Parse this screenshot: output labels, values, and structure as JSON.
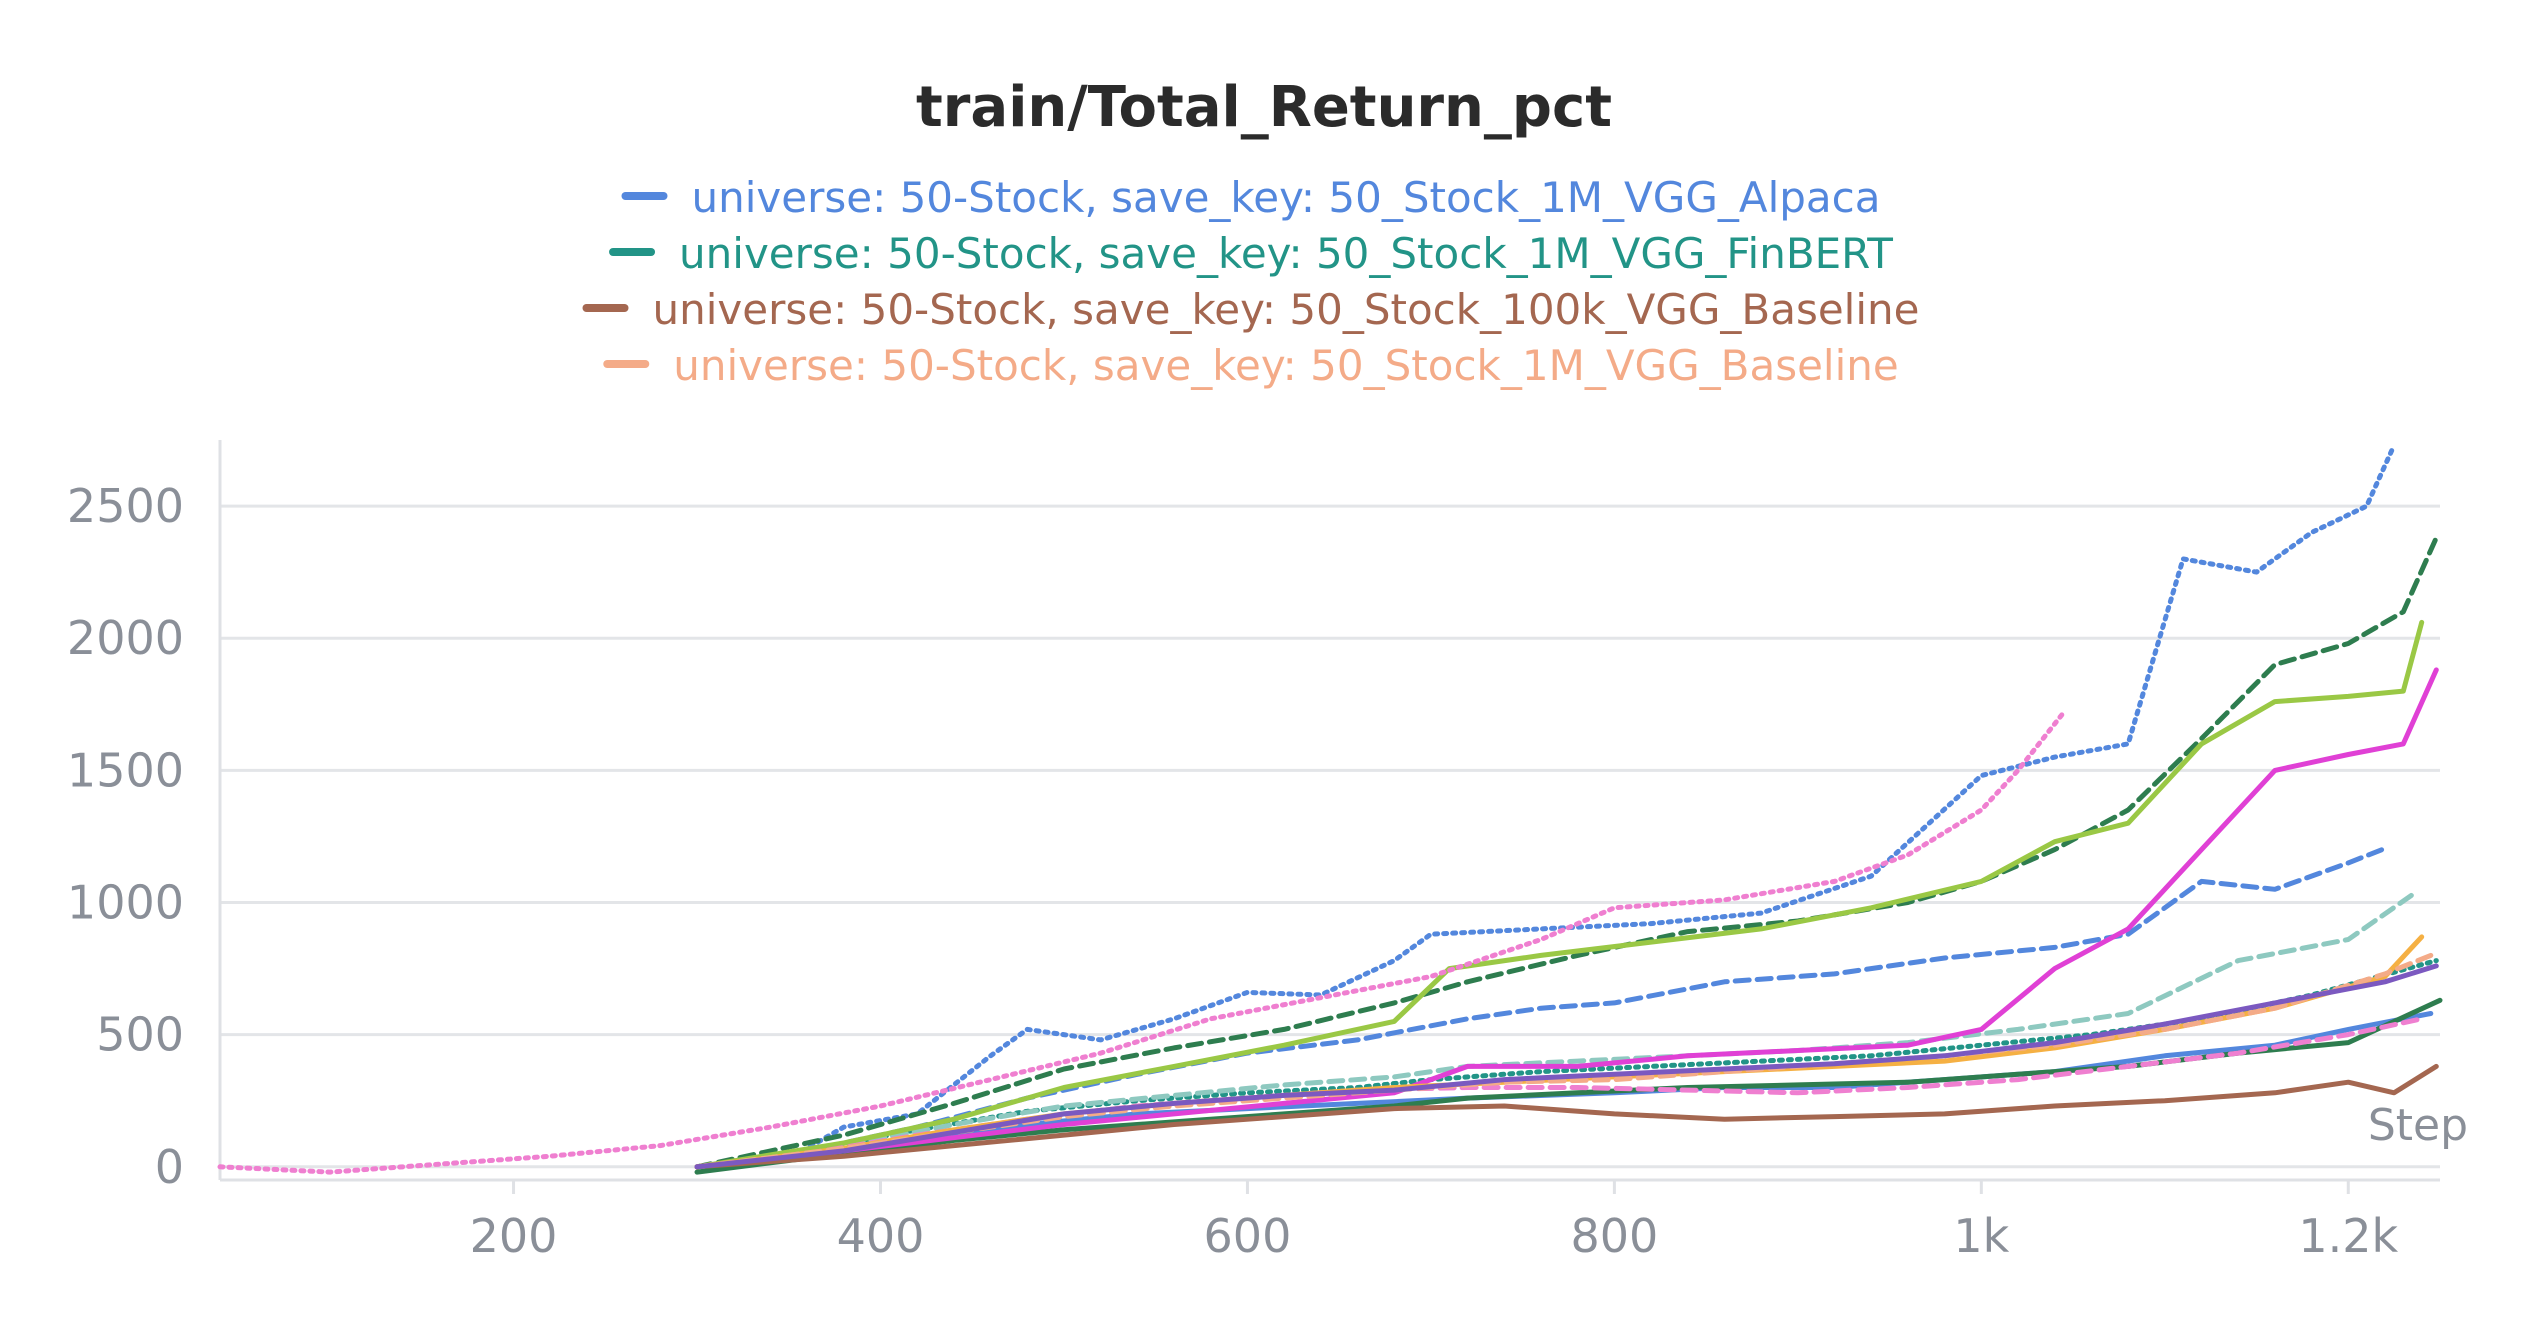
{
  "chart_data": {
    "type": "line",
    "title": "train/Total_Return_pct",
    "xlabel": "Step",
    "ylabel": "",
    "xlim": [
      40,
      1250
    ],
    "ylim": [
      -50,
      2750
    ],
    "x_ticks": [
      {
        "value": 200,
        "label": "200"
      },
      {
        "value": 400,
        "label": "400"
      },
      {
        "value": 600,
        "label": "600"
      },
      {
        "value": 800,
        "label": "800"
      },
      {
        "value": 1000,
        "label": "1k"
      },
      {
        "value": 1200,
        "label": "1.2k"
      }
    ],
    "y_ticks": [
      {
        "value": 0,
        "label": "0"
      },
      {
        "value": 500,
        "label": "500"
      },
      {
        "value": 1000,
        "label": "1000"
      },
      {
        "value": 1500,
        "label": "1500"
      },
      {
        "value": 2000,
        "label": "2000"
      },
      {
        "value": 2500,
        "label": "2500"
      }
    ],
    "grid": true,
    "legend": [
      {
        "name": "universe: 50-Stock, save_key: 50_Stock_1M_VGG_Alpaca",
        "color": "#5387dd"
      },
      {
        "name": "universe: 50-Stock, save_key: 50_Stock_1M_VGG_FinBERT",
        "color": "#229487"
      },
      {
        "name": "universe: 50-Stock, save_key: 50_Stock_100k_VGG_Baseline",
        "color": "#a46750"
      },
      {
        "name": "universe: 50-Stock, save_key: 50_Stock_1M_VGG_Baseline",
        "color": "#f4ab88"
      }
    ],
    "series": [
      {
        "color": "#5387dd",
        "dash": "dot",
        "points": [
          [
            300,
            0
          ],
          [
            350,
            30
          ],
          [
            380,
            150
          ],
          [
            420,
            200
          ],
          [
            460,
            420
          ],
          [
            480,
            520
          ],
          [
            520,
            480
          ],
          [
            560,
            560
          ],
          [
            600,
            660
          ],
          [
            640,
            650
          ],
          [
            680,
            780
          ],
          [
            700,
            880
          ],
          [
            760,
            900
          ],
          [
            820,
            920
          ],
          [
            880,
            960
          ],
          [
            940,
            1100
          ],
          [
            1000,
            1480
          ],
          [
            1040,
            1550
          ],
          [
            1080,
            1600
          ],
          [
            1110,
            2300
          ],
          [
            1150,
            2250
          ],
          [
            1180,
            2400
          ],
          [
            1210,
            2500
          ],
          [
            1225,
            2730
          ]
        ]
      },
      {
        "color": "#5387dd",
        "dash": "dash",
        "points": [
          [
            300,
            0
          ],
          [
            360,
            60
          ],
          [
            420,
            150
          ],
          [
            480,
            260
          ],
          [
            540,
            350
          ],
          [
            600,
            430
          ],
          [
            660,
            480
          ],
          [
            720,
            560
          ],
          [
            760,
            600
          ],
          [
            800,
            620
          ],
          [
            860,
            700
          ],
          [
            920,
            730
          ],
          [
            980,
            790
          ],
          [
            1040,
            830
          ],
          [
            1080,
            880
          ],
          [
            1120,
            1080
          ],
          [
            1160,
            1050
          ],
          [
            1200,
            1150
          ],
          [
            1222,
            1210
          ]
        ]
      },
      {
        "color": "#5387dd",
        "dash": "solid",
        "points": [
          [
            300,
            0
          ],
          [
            360,
            40
          ],
          [
            420,
            100
          ],
          [
            480,
            160
          ],
          [
            540,
            200
          ],
          [
            600,
            220
          ],
          [
            660,
            240
          ],
          [
            720,
            260
          ],
          [
            800,
            280
          ],
          [
            860,
            300
          ],
          [
            920,
            300
          ],
          [
            980,
            330
          ],
          [
            1040,
            360
          ],
          [
            1100,
            420
          ],
          [
            1160,
            460
          ],
          [
            1200,
            520
          ],
          [
            1245,
            580
          ]
        ]
      },
      {
        "color": "#2e7d4f",
        "dash": "dash",
        "points": [
          [
            300,
            0
          ],
          [
            380,
            120
          ],
          [
            440,
            240
          ],
          [
            500,
            370
          ],
          [
            560,
            450
          ],
          [
            620,
            520
          ],
          [
            680,
            620
          ],
          [
            720,
            700
          ],
          [
            780,
            800
          ],
          [
            840,
            890
          ],
          [
            900,
            930
          ],
          [
            960,
            1000
          ],
          [
            1000,
            1080
          ],
          [
            1040,
            1200
          ],
          [
            1080,
            1350
          ],
          [
            1120,
            1620
          ],
          [
            1160,
            1900
          ],
          [
            1200,
            1980
          ],
          [
            1230,
            2100
          ],
          [
            1248,
            2380
          ]
        ]
      },
      {
        "color": "#2e7d4f",
        "dash": "solid",
        "points": [
          [
            300,
            -20
          ],
          [
            380,
            50
          ],
          [
            440,
            100
          ],
          [
            500,
            140
          ],
          [
            560,
            170
          ],
          [
            620,
            200
          ],
          [
            680,
            230
          ],
          [
            720,
            260
          ],
          [
            780,
            280
          ],
          [
            840,
            300
          ],
          [
            900,
            310
          ],
          [
            960,
            320
          ],
          [
            1020,
            350
          ],
          [
            1080,
            380
          ],
          [
            1140,
            430
          ],
          [
            1200,
            470
          ],
          [
            1250,
            630
          ]
        ]
      },
      {
        "color": "#229487",
        "dash": "dot",
        "points": [
          [
            300,
            0
          ],
          [
            360,
            60
          ],
          [
            420,
            140
          ],
          [
            480,
            210
          ],
          [
            540,
            250
          ],
          [
            600,
            280
          ],
          [
            660,
            300
          ],
          [
            700,
            330
          ],
          [
            760,
            360
          ],
          [
            820,
            380
          ],
          [
            880,
            400
          ],
          [
            940,
            420
          ],
          [
            1000,
            460
          ],
          [
            1060,
            500
          ],
          [
            1120,
            560
          ],
          [
            1180,
            650
          ],
          [
            1248,
            780
          ]
        ]
      },
      {
        "color": "#8ec9c0",
        "dash": "dash",
        "points": [
          [
            300,
            0
          ],
          [
            380,
            80
          ],
          [
            440,
            160
          ],
          [
            500,
            230
          ],
          [
            560,
            270
          ],
          [
            620,
            310
          ],
          [
            680,
            340
          ],
          [
            720,
            380
          ],
          [
            780,
            400
          ],
          [
            840,
            420
          ],
          [
            900,
            440
          ],
          [
            960,
            470
          ],
          [
            1020,
            520
          ],
          [
            1080,
            580
          ],
          [
            1140,
            780
          ],
          [
            1200,
            860
          ],
          [
            1235,
            1030
          ]
        ]
      },
      {
        "color": "#9ac845",
        "dash": "solid",
        "points": [
          [
            300,
            0
          ],
          [
            380,
            90
          ],
          [
            440,
            180
          ],
          [
            500,
            300
          ],
          [
            560,
            380
          ],
          [
            620,
            460
          ],
          [
            680,
            550
          ],
          [
            710,
            750
          ],
          [
            760,
            800
          ],
          [
            820,
            850
          ],
          [
            880,
            900
          ],
          [
            940,
            980
          ],
          [
            1000,
            1080
          ],
          [
            1040,
            1230
          ],
          [
            1080,
            1300
          ],
          [
            1120,
            1600
          ],
          [
            1160,
            1760
          ],
          [
            1200,
            1780
          ],
          [
            1230,
            1800
          ],
          [
            1240,
            2060
          ]
        ]
      },
      {
        "color": "#e040d5",
        "dash": "solid",
        "points": [
          [
            300,
            0
          ],
          [
            380,
            60
          ],
          [
            440,
            110
          ],
          [
            500,
            160
          ],
          [
            560,
            200
          ],
          [
            620,
            240
          ],
          [
            680,
            280
          ],
          [
            720,
            380
          ],
          [
            780,
            380
          ],
          [
            840,
            420
          ],
          [
            900,
            440
          ],
          [
            960,
            460
          ],
          [
            1000,
            520
          ],
          [
            1040,
            750
          ],
          [
            1080,
            900
          ],
          [
            1120,
            1200
          ],
          [
            1160,
            1500
          ],
          [
            1200,
            1560
          ],
          [
            1230,
            1600
          ],
          [
            1248,
            1880
          ]
        ]
      },
      {
        "color": "#ef7fd0",
        "dash": "dot",
        "points": [
          [
            40,
            0
          ],
          [
            100,
            -20
          ],
          [
            160,
            10
          ],
          [
            220,
            40
          ],
          [
            280,
            80
          ],
          [
            340,
            150
          ],
          [
            400,
            230
          ],
          [
            460,
            330
          ],
          [
            520,
            430
          ],
          [
            580,
            560
          ],
          [
            640,
            640
          ],
          [
            700,
            720
          ],
          [
            760,
            860
          ],
          [
            800,
            980
          ],
          [
            860,
            1010
          ],
          [
            920,
            1080
          ],
          [
            960,
            1180
          ],
          [
            1000,
            1350
          ],
          [
            1020,
            1500
          ],
          [
            1045,
            1720
          ]
        ]
      },
      {
        "color": "#ef7fd0",
        "dash": "dash",
        "points": [
          [
            300,
            0
          ],
          [
            360,
            50
          ],
          [
            420,
            120
          ],
          [
            480,
            180
          ],
          [
            540,
            230
          ],
          [
            600,
            260
          ],
          [
            660,
            290
          ],
          [
            720,
            300
          ],
          [
            780,
            300
          ],
          [
            840,
            290
          ],
          [
            900,
            280
          ],
          [
            960,
            300
          ],
          [
            1020,
            330
          ],
          [
            1080,
            380
          ],
          [
            1140,
            430
          ],
          [
            1200,
            500
          ],
          [
            1240,
            560
          ]
        ]
      },
      {
        "color": "#f5b043",
        "dash": "solid",
        "points": [
          [
            300,
            0
          ],
          [
            380,
            70
          ],
          [
            440,
            140
          ],
          [
            500,
            200
          ],
          [
            560,
            240
          ],
          [
            620,
            270
          ],
          [
            680,
            300
          ],
          [
            740,
            320
          ],
          [
            800,
            340
          ],
          [
            860,
            360
          ],
          [
            920,
            380
          ],
          [
            980,
            400
          ],
          [
            1040,
            450
          ],
          [
            1100,
            520
          ],
          [
            1160,
            600
          ],
          [
            1220,
            720
          ],
          [
            1240,
            870
          ]
        ]
      },
      {
        "color": "#f4ab88",
        "dash": "dash",
        "points": [
          [
            300,
            0
          ],
          [
            380,
            70
          ],
          [
            440,
            130
          ],
          [
            500,
            190
          ],
          [
            560,
            230
          ],
          [
            620,
            260
          ],
          [
            680,
            290
          ],
          [
            740,
            320
          ],
          [
            800,
            330
          ],
          [
            860,
            360
          ],
          [
            920,
            390
          ],
          [
            980,
            420
          ],
          [
            1040,
            460
          ],
          [
            1100,
            520
          ],
          [
            1160,
            600
          ],
          [
            1220,
            730
          ],
          [
            1245,
            800
          ]
        ]
      },
      {
        "color": "#a46750",
        "dash": "solid",
        "points": [
          [
            300,
            0
          ],
          [
            380,
            40
          ],
          [
            440,
            80
          ],
          [
            500,
            120
          ],
          [
            560,
            160
          ],
          [
            620,
            190
          ],
          [
            680,
            220
          ],
          [
            740,
            230
          ],
          [
            800,
            200
          ],
          [
            860,
            180
          ],
          [
            920,
            190
          ],
          [
            980,
            200
          ],
          [
            1040,
            230
          ],
          [
            1100,
            250
          ],
          [
            1160,
            280
          ],
          [
            1200,
            320
          ],
          [
            1225,
            280
          ],
          [
            1248,
            380
          ]
        ]
      },
      {
        "color": "#7b59c0",
        "dash": "solid",
        "points": [
          [
            300,
            0
          ],
          [
            380,
            60
          ],
          [
            440,
            130
          ],
          [
            500,
            200
          ],
          [
            560,
            240
          ],
          [
            620,
            270
          ],
          [
            680,
            290
          ],
          [
            740,
            330
          ],
          [
            800,
            350
          ],
          [
            860,
            370
          ],
          [
            920,
            390
          ],
          [
            980,
            420
          ],
          [
            1040,
            470
          ],
          [
            1100,
            540
          ],
          [
            1160,
            620
          ],
          [
            1220,
            700
          ],
          [
            1248,
            760
          ]
        ]
      }
    ]
  }
}
